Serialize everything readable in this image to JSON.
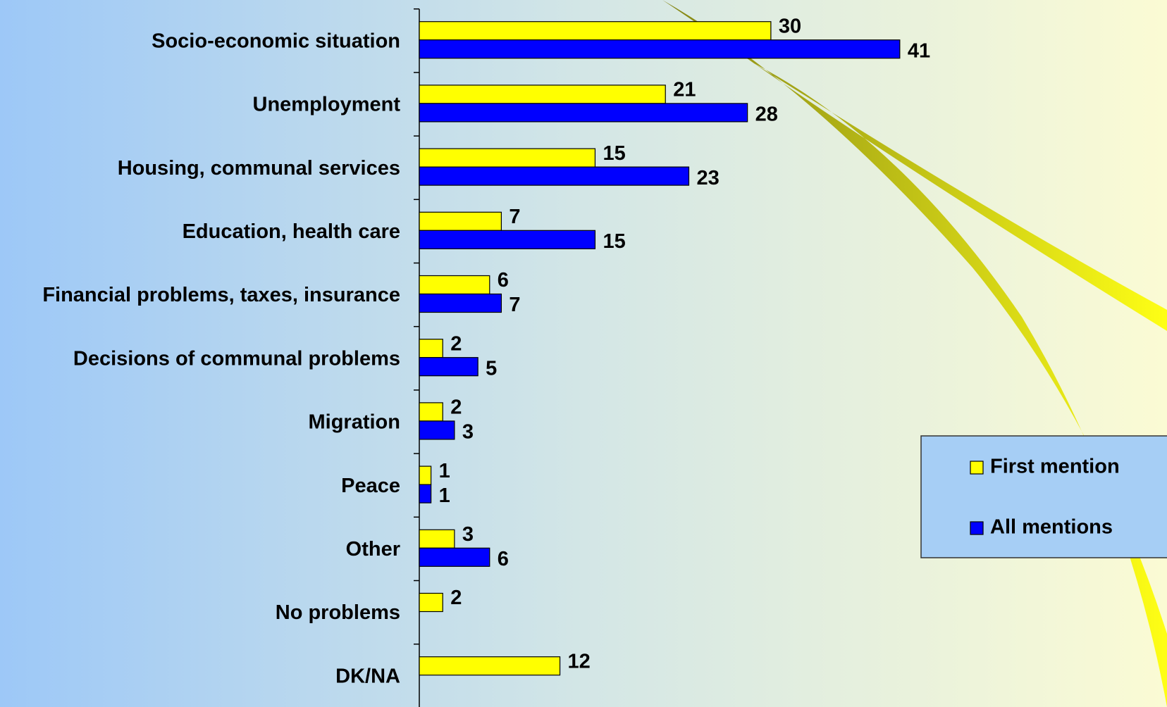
{
  "chart_data": {
    "type": "bar",
    "orientation": "horizontal",
    "categories": [
      "Socio-economic situation",
      "Unemployment",
      "Housing, communal services",
      "Education, health care",
      "Financial problems, taxes, insurance",
      "Decisions of communal problems",
      "Migration",
      "Peace",
      "Other",
      "No problems",
      "DK/NA"
    ],
    "series": [
      {
        "name": "First mention",
        "color": "#ffff00",
        "values": [
          30,
          21,
          15,
          7,
          6,
          2,
          2,
          1,
          3,
          2,
          12
        ]
      },
      {
        "name": "All mentions",
        "color": "#0000ff",
        "values": [
          41,
          28,
          23,
          15,
          7,
          5,
          3,
          1,
          6,
          null,
          null
        ]
      }
    ],
    "legend": "right"
  }
}
